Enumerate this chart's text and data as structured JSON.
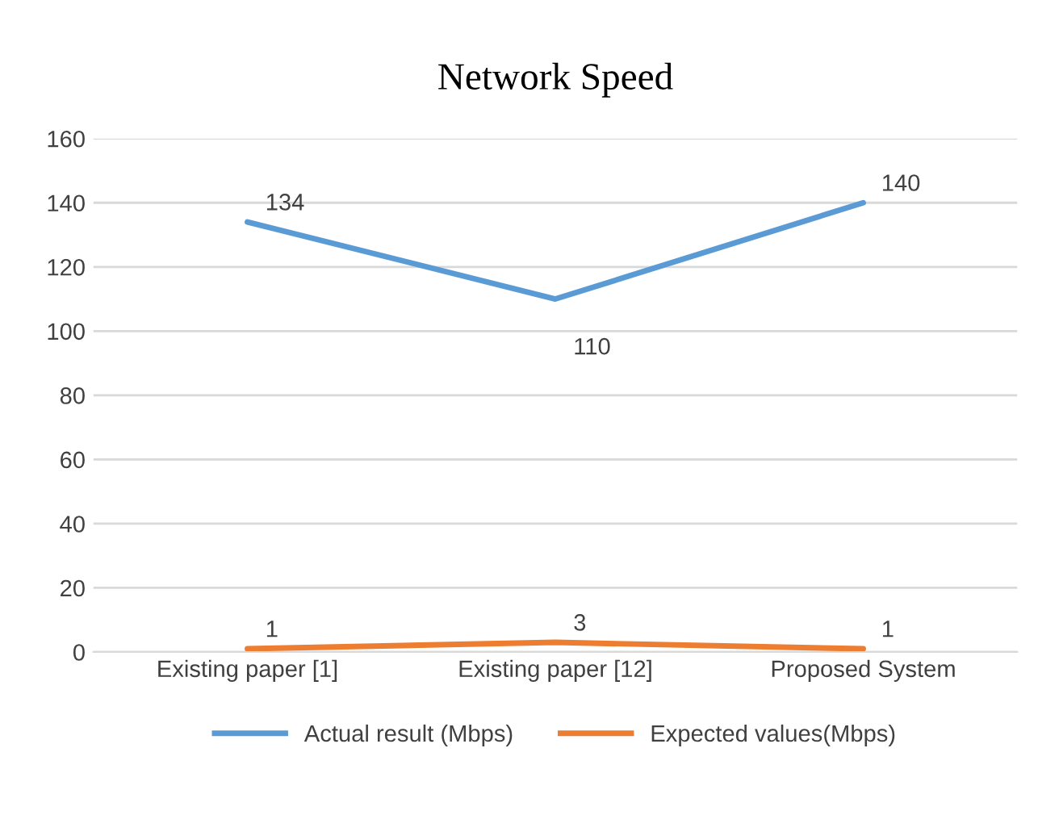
{
  "chart_data": {
    "type": "line",
    "title": "Network Speed",
    "categories": [
      "Existing paper [1]",
      "Existing paper [12]",
      "Proposed System"
    ],
    "series": [
      {
        "name": "Actual result (Mbps)",
        "color": "#5b9bd5",
        "values": [
          134,
          110,
          140
        ]
      },
      {
        "name": "Expected values(Mbps)",
        "color": "#ed7d31",
        "values": [
          1,
          3,
          1
        ]
      }
    ],
    "ylim": [
      0,
      160
    ],
    "yticks": [
      0,
      20,
      40,
      60,
      80,
      100,
      120,
      140,
      160
    ],
    "grid": "y",
    "legend": "bottom",
    "data_labels": true,
    "marker": "none",
    "line_style": "solid"
  }
}
